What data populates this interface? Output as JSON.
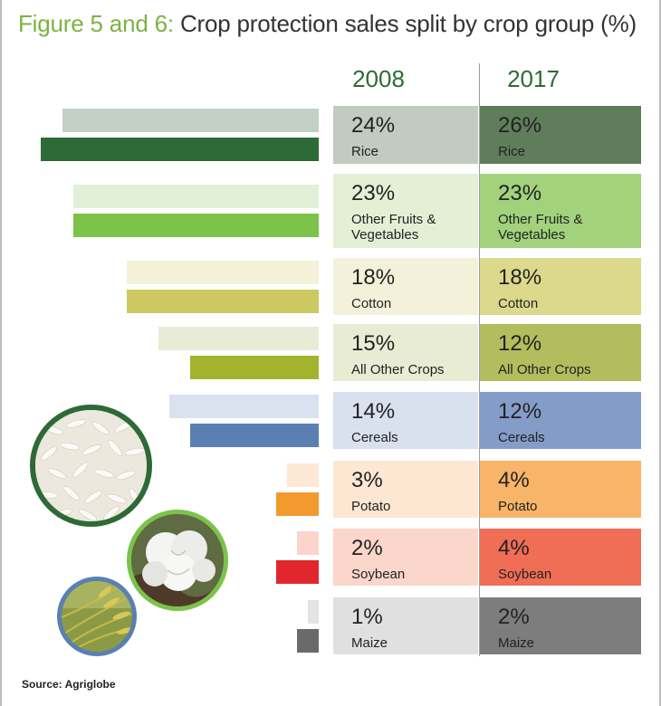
{
  "title": {
    "prefix": "Figure 5 and 6:",
    "text": "Crop protection sales split by crop group (%)"
  },
  "source": "Source: Agriglobe",
  "chart_data": {
    "type": "bar",
    "orientation": "horizontal",
    "title": "Figure 5 and 6: Crop protection sales split by crop group (%)",
    "unit": "%",
    "series": [
      {
        "name": "2008",
        "values": [
          24,
          23,
          18,
          15,
          14,
          3,
          2,
          1
        ]
      },
      {
        "name": "2017",
        "values": [
          26,
          23,
          18,
          12,
          12,
          4,
          4,
          2
        ]
      }
    ],
    "categories": [
      {
        "label": "Rice",
        "label_display": "Rice",
        "v2008": 24,
        "v2017": 26,
        "pct2008": "24%",
        "pct2017": "26%",
        "colors": {
          "c2008_light": "#c4cfc5",
          "c2008_dark": "#2e6a37",
          "cell2008": "#c1cbbf",
          "cell2017": "#5f7d5b"
        }
      },
      {
        "label": "Other Fruits & Vegetables",
        "label_display": "Other Fruits &\nVegetables",
        "v2008": 23,
        "v2017": 23,
        "pct2008": "23%",
        "pct2017": "23%",
        "colors": {
          "c2008_light": "#e3f0d8",
          "c2008_dark": "#7cc349",
          "cell2008": "#e3f0d6",
          "cell2017": "#a2d27c"
        }
      },
      {
        "label": "Cotton",
        "label_display": "Cotton",
        "v2008": 18,
        "v2017": 18,
        "pct2008": "18%",
        "pct2017": "18%",
        "colors": {
          "c2008_light": "#f3f1d8",
          "c2008_dark": "#cdc961",
          "cell2008": "#f3f1d9",
          "cell2017": "#dcd98c"
        }
      },
      {
        "label": "All Other Crops",
        "label_display": "All Other Crops",
        "v2008": 15,
        "v2017": 12,
        "pct2008": "15%",
        "pct2017": "12%",
        "colors": {
          "c2008_light": "#e8ecd6",
          "c2008_dark": "#a4b32e",
          "cell2008": "#e8ecd5",
          "cell2017": "#b3bd5d"
        }
      },
      {
        "label": "Cereals",
        "label_display": "Cereals",
        "v2008": 14,
        "v2017": 12,
        "pct2008": "14%",
        "pct2017": "12%",
        "colors": {
          "c2008_light": "#dbe2ef",
          "c2008_dark": "#5a7fb3",
          "cell2008": "#d9e0ee",
          "cell2017": "#849cc8"
        }
      },
      {
        "label": "Potato",
        "label_display": "Potato",
        "v2008": 3,
        "v2017": 4,
        "pct2008": "3%",
        "pct2017": "4%",
        "colors": {
          "c2008_light": "#fde8d5",
          "c2008_dark": "#f29a2e",
          "cell2008": "#fde7d3",
          "cell2017": "#f8b468"
        }
      },
      {
        "label": "Soybean",
        "label_display": "Soybean",
        "v2008": 2,
        "v2017": 4,
        "pct2008": "2%",
        "pct2017": "4%",
        "colors": {
          "c2008_light": "#fbd5cb",
          "c2008_dark": "#e1262d",
          "cell2008": "#fbd6ca",
          "cell2017": "#ef6e55"
        }
      },
      {
        "label": "Maize",
        "label_display": "Maize",
        "v2008": 1,
        "v2017": 2,
        "pct2008": "1%",
        "pct2017": "2%",
        "colors": {
          "c2008_light": "#e4e4e4",
          "c2008_dark": "#6a6a6a",
          "cell2008": "#e0e0e0",
          "cell2017": "#7d7d7d"
        }
      }
    ]
  },
  "images": [
    {
      "name": "rice-grains-photo",
      "colors": {
        "border": "#2e6a37",
        "fill": "#f0ede4"
      }
    },
    {
      "name": "cotton-boll-photo",
      "colors": {
        "border": "#7cc349",
        "fill": "#6c7a4d"
      }
    },
    {
      "name": "wheat-field-photo",
      "colors": {
        "border": "#5a7fb3",
        "fill": "#7a8a3a"
      }
    }
  ]
}
